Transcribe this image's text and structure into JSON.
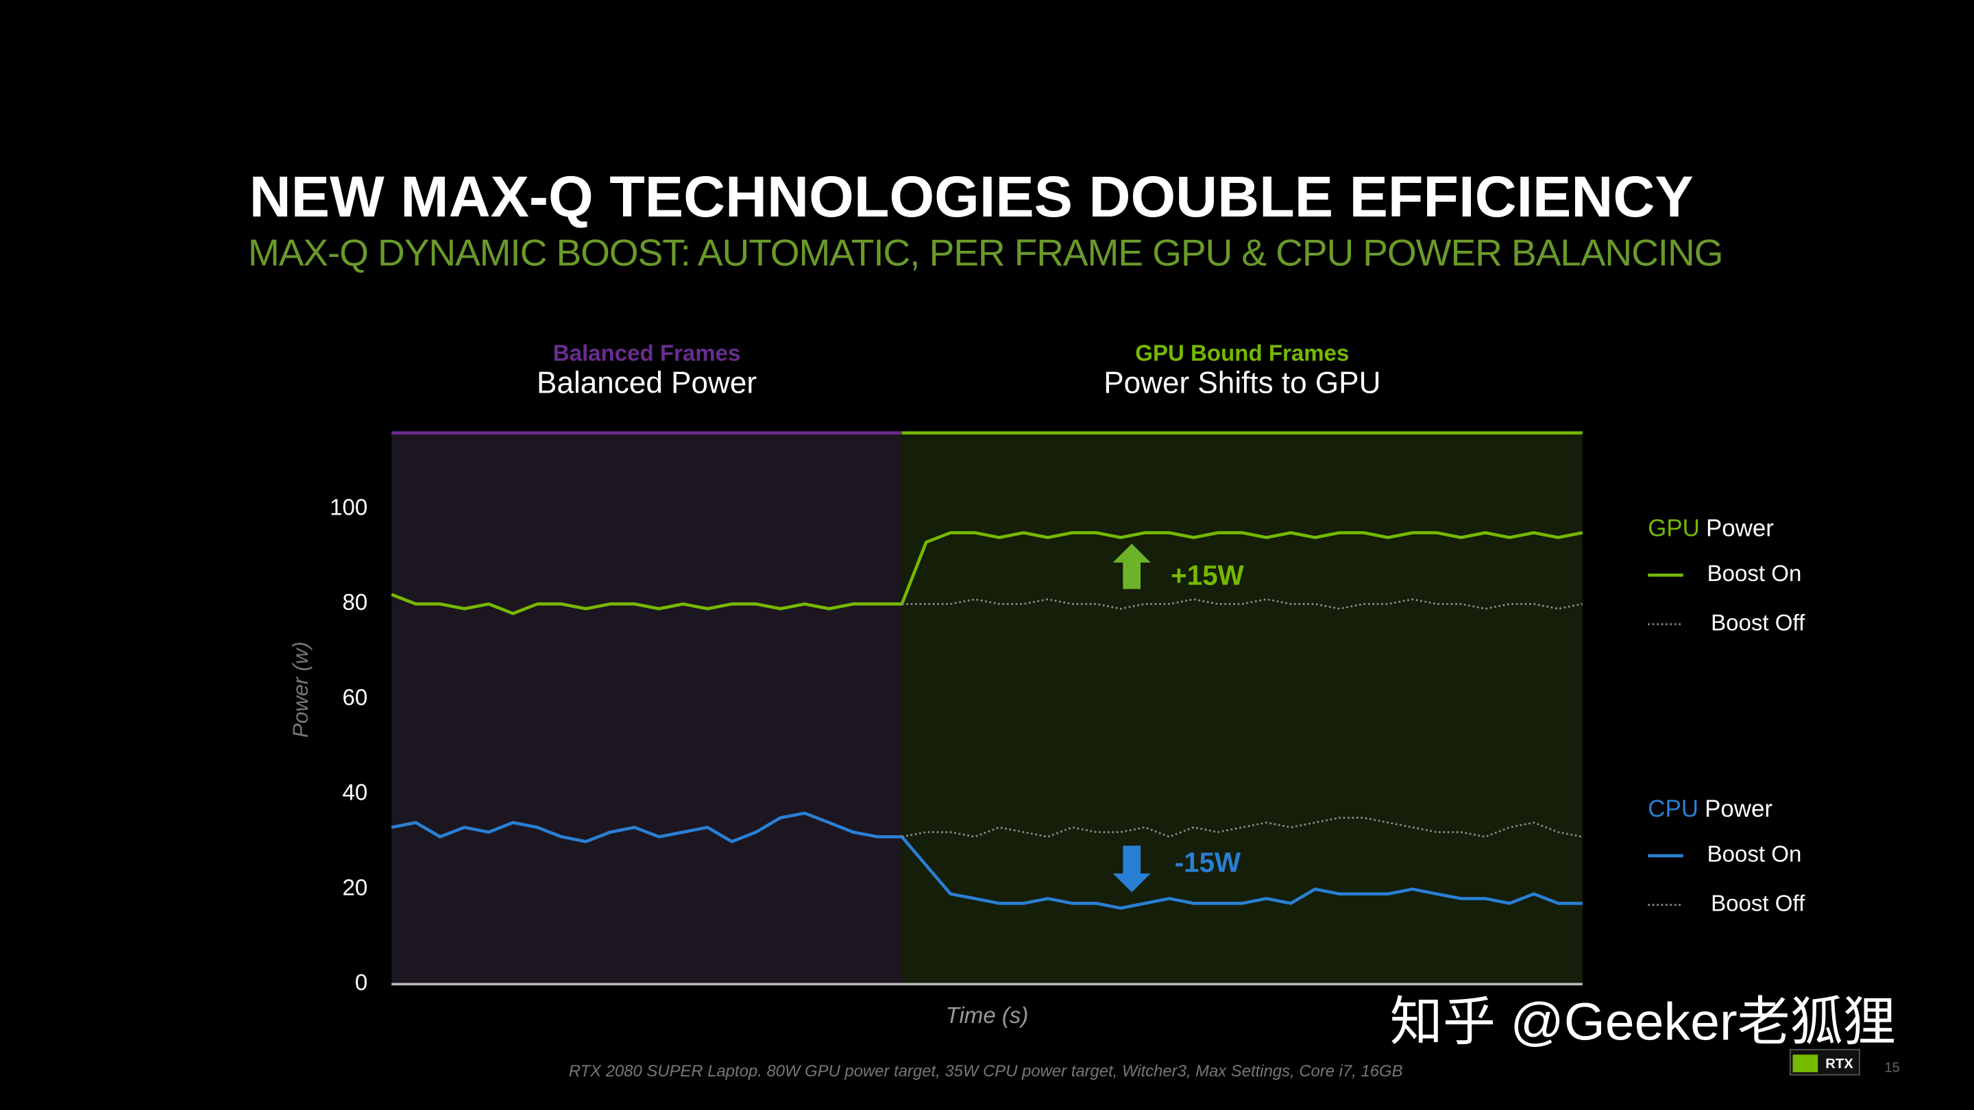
{
  "chart_data": {
    "type": "line",
    "title": "NEW MAX-Q TECHNOLOGIES DOUBLE EFFICIENCY",
    "subtitle": "MAX-Q DYNAMIC BOOST: AUTOMATIC, PER FRAME GPU & CPU POWER BALANCING",
    "regions": [
      {
        "label": "Balanced Frames",
        "title": "Balanced Power",
        "color": "#6a2c8e"
      },
      {
        "label": "GPU Bound Frames",
        "title": "Power Shifts to GPU",
        "color": "#76b900"
      }
    ],
    "y_label": "Power (w)",
    "x_label": "Time (s)",
    "ylim": [
      0,
      116
    ],
    "yticks": [
      0,
      20,
      40,
      60,
      80,
      100
    ],
    "legend_groups": [
      {
        "name": "GPU",
        "suffix": "Power",
        "color": "#76b900"
      },
      {
        "name": "CPU",
        "suffix": "Power",
        "color": "#2a7fd4"
      }
    ],
    "series": [
      {
        "group": 0,
        "name": "Boost On",
        "color": "#76b900",
        "style": "solid",
        "values": [
          82,
          80,
          80,
          79,
          80,
          78,
          80,
          80,
          79,
          80,
          80,
          79,
          80,
          79,
          80,
          80,
          79,
          80,
          79,
          80,
          80,
          80,
          93,
          95,
          95,
          94,
          95,
          94,
          95,
          95,
          94,
          95,
          95,
          94,
          95,
          95,
          94,
          95,
          94,
          95,
          95,
          94,
          95,
          95,
          94,
          95,
          94,
          95,
          94,
          95
        ]
      },
      {
        "group": 0,
        "name": "Boost Off",
        "color": "#8a8a8a",
        "style": "dotted",
        "values": [
          null,
          null,
          null,
          null,
          null,
          null,
          null,
          null,
          null,
          null,
          null,
          null,
          null,
          null,
          null,
          null,
          null,
          null,
          null,
          null,
          null,
          80,
          80,
          80,
          81,
          80,
          80,
          81,
          80,
          80,
          79,
          80,
          80,
          81,
          80,
          80,
          81,
          80,
          80,
          79,
          80,
          80,
          81,
          80,
          80,
          79,
          80,
          80,
          79,
          80
        ]
      },
      {
        "group": 1,
        "name": "Boost On",
        "color": "#2a7fd4",
        "style": "solid",
        "values": [
          33,
          34,
          31,
          33,
          32,
          34,
          33,
          31,
          30,
          32,
          33,
          31,
          32,
          33,
          30,
          32,
          35,
          36,
          34,
          32,
          31,
          31,
          25,
          19,
          18,
          17,
          17,
          18,
          17,
          17,
          16,
          17,
          18,
          17,
          17,
          17,
          18,
          17,
          20,
          19,
          19,
          19,
          20,
          19,
          18,
          18,
          17,
          19,
          17,
          17
        ]
      },
      {
        "group": 1,
        "name": "Boost Off",
        "color": "#8a8a8a",
        "style": "dotted",
        "values": [
          null,
          null,
          null,
          null,
          null,
          null,
          null,
          null,
          null,
          null,
          null,
          null,
          null,
          null,
          null,
          null,
          null,
          null,
          null,
          null,
          null,
          31,
          32,
          32,
          31,
          33,
          32,
          31,
          33,
          32,
          32,
          33,
          31,
          33,
          32,
          33,
          34,
          33,
          34,
          35,
          35,
          34,
          33,
          32,
          32,
          31,
          33,
          34,
          32,
          31
        ]
      }
    ],
    "annotations": [
      "+15W",
      "-15W"
    ],
    "footnote": "RTX 2080 SUPER Laptop. 80W GPU power target, 35W CPU power target, Witcher3, Max Settings, Core i7, 16GB",
    "page_number": "15",
    "logo": "RTX",
    "watermark": "知乎 @Geeker老狐狸"
  }
}
